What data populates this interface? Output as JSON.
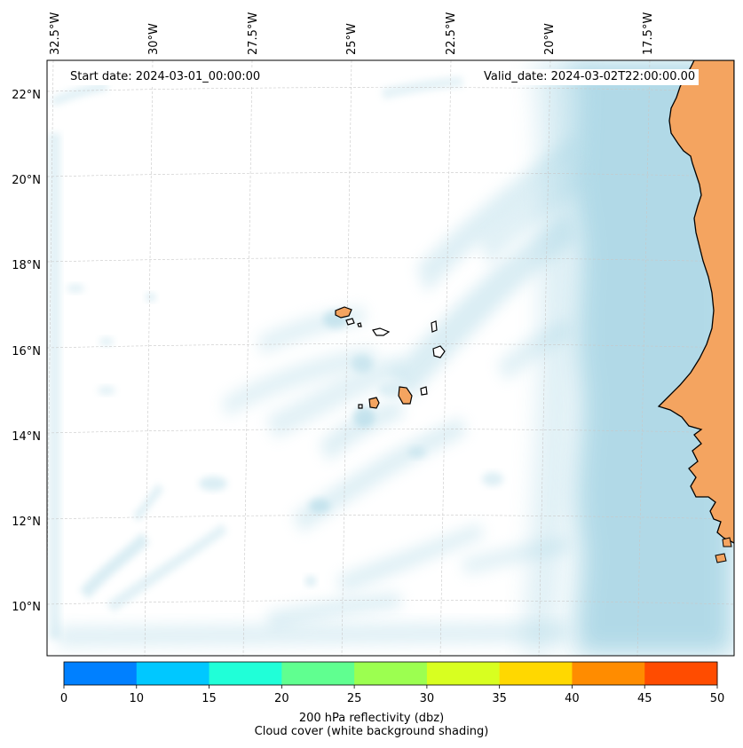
{
  "start_date": "Start date: 2024-03-01_00:00:00",
  "valid_date": "Valid_date: 2024-03-02T22:00:00.00",
  "lon_labels": [
    "32.5°W",
    "30°W",
    "27.5°W",
    "25°W",
    "22.5°W",
    "20°W",
    "17.5°W"
  ],
  "lat_labels": [
    "22°N",
    "20°N",
    "18°N",
    "16°N",
    "14°N",
    "12°N",
    "10°N"
  ],
  "colorbar": {
    "ticks": [
      "0",
      "10",
      "15",
      "20",
      "25",
      "30",
      "35",
      "40",
      "45",
      "50"
    ],
    "colors": [
      "#0080ff",
      "#00c8ff",
      "#20ffd8",
      "#60ff90",
      "#9cff50",
      "#d8ff20",
      "#ffd800",
      "#ff8c00",
      "#ff4c00"
    ],
    "label_line1": "200 hPa reflectivity (dbz)",
    "label_line2": "Cloud cover (white background shading)"
  },
  "colors": {
    "land": "#f4a460",
    "cloud": "#add8e6",
    "coast": "#000000"
  }
}
